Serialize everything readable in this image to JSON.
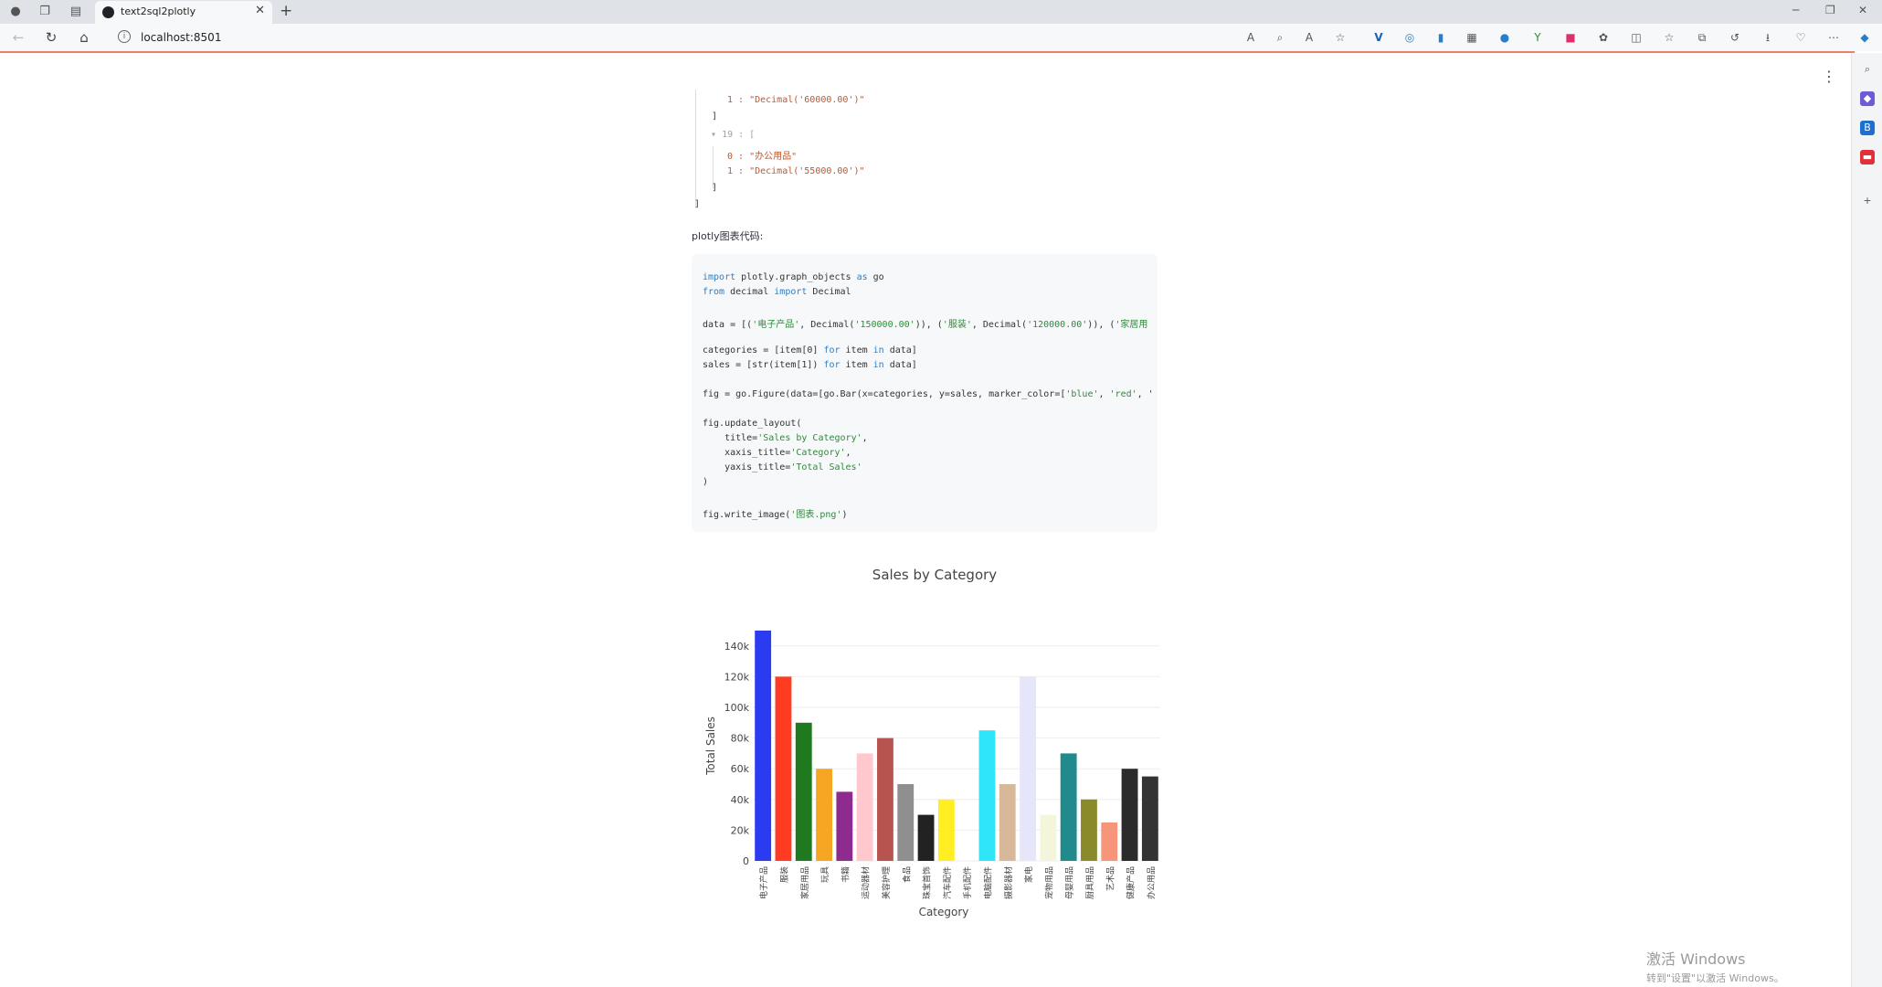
{
  "browser": {
    "tab_title": "text2sql2plotly",
    "url": "localhost:8501",
    "new_tab": "+",
    "close": "✕"
  },
  "json_view": {
    "l1": "1 : \"Decimal('60000.00')\"",
    "l2": "]",
    "l3_key": "19 : [",
    "l4": "0 : \"办公用品\"",
    "l5": "1 : \"Decimal('55000.00')\"",
    "l6": "]",
    "l7": "]"
  },
  "code_label": "plotly图表代码:",
  "code_lines": {
    "c1a": "import",
    "c1b": " plotly.graph_objects ",
    "c1c": "as",
    "c1d": " go",
    "c2a": "from",
    "c2b": " decimal ",
    "c2c": "import",
    "c2d": " Decimal",
    "c3a": "data = [(",
    "c3b": "'电子产品'",
    "c3c": ", Decimal(",
    "c3d": "'150000.00'",
    "c3e": ")), (",
    "c3f": "'服装'",
    "c3g": ", Decimal(",
    "c3h": "'120000.00'",
    "c3i": ")), (",
    "c3j": "'家居用",
    "c4a": "categories = [item[0] ",
    "c4b": "for",
    "c4c": " item ",
    "c4d": "in",
    "c4e": " data]",
    "c5a": "sales = [str(item[1]) ",
    "c5b": "for",
    "c5c": " item ",
    "c5d": "in",
    "c5e": " data]",
    "c6a": "fig = go.Figure(data=[go.Bar(x=categories, y=sales, marker_color=[",
    "c6b": "'blue'",
    "c6c": ", ",
    "c6d": "'red'",
    "c6e": ", '",
    "c7": "fig.update_layout(",
    "c8a": "    title=",
    "c8b": "'Sales by Category'",
    "c8c": ",",
    "c9a": "    xaxis_title=",
    "c9b": "'Category'",
    "c9c": ",",
    "c10a": "    yaxis_title=",
    "c10b": "'Total Sales'",
    "c11": ")",
    "c12a": "fig.write_image(",
    "c12b": "'图表.png'",
    "c12c": ")"
  },
  "chart_data": {
    "type": "bar",
    "title": "Sales by Category",
    "xlabel": "Category",
    "ylabel": "Total Sales",
    "ylim": [
      0,
      150000
    ],
    "yticks": [
      0,
      20000,
      40000,
      60000,
      80000,
      100000,
      120000,
      140000
    ],
    "ytick_labels": [
      "0",
      "20k",
      "40k",
      "60k",
      "80k",
      "100k",
      "120k",
      "140k"
    ],
    "categories": [
      "电子产品",
      "服装",
      "家居用品",
      "玩具",
      "书籍",
      "运动器材",
      "美容护理",
      "食品",
      "珠宝首饰",
      "汽车配件",
      "手机配件",
      "电脑配件",
      "摄影器材",
      "家电",
      "宠物用品",
      "母婴用品",
      "厨具用品",
      "艺术品",
      "健康产品",
      "办公用品"
    ],
    "values": [
      150000,
      120000,
      90000,
      60000,
      45000,
      70000,
      80000,
      50000,
      30000,
      40000,
      0,
      85000,
      50000,
      120000,
      30000,
      70000,
      40000,
      25000,
      60000,
      55000
    ],
    "colors": [
      "#2b3cf0",
      "#ff3b22",
      "#1f7a1f",
      "#f6a623",
      "#8e2b8e",
      "#ffc8cf",
      "#b85450",
      "#8f8f8f",
      "#222222",
      "#ffee22",
      "#ffffff",
      "#2ee6f7",
      "#d8b89a",
      "#e6e6fa",
      "#f5f5dc",
      "#218a8c",
      "#8b8a2a",
      "#f7957a",
      "#2b2b2b",
      "#333333"
    ]
  },
  "watermark": {
    "line1": "激活 Windows",
    "line2": "转到\"设置\"以激活 Windows。"
  }
}
